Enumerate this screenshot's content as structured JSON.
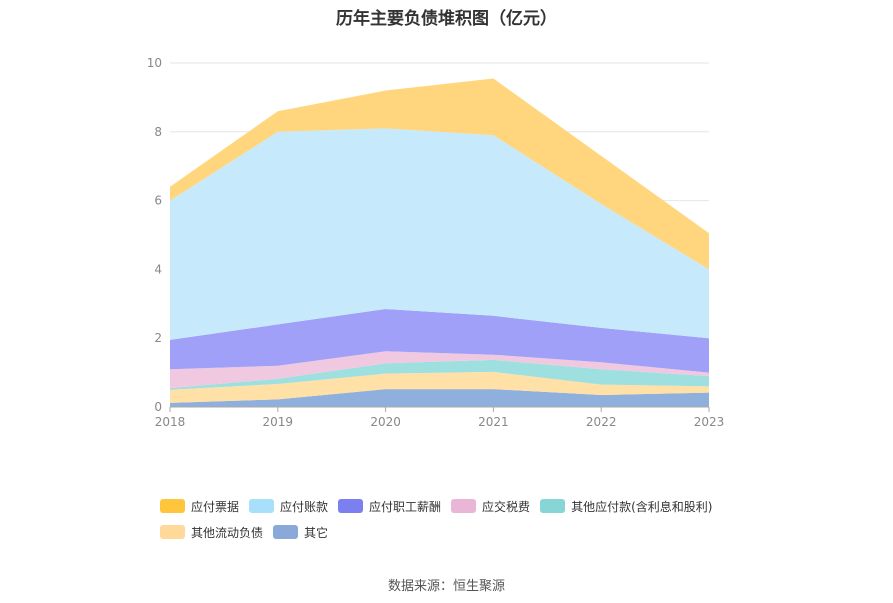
{
  "chart_data": {
    "type": "area",
    "stacked": true,
    "title": "历年主要负债堆积图（亿元）",
    "x": [
      "2018",
      "2019",
      "2020",
      "2021",
      "2022",
      "2023"
    ],
    "ylim": [
      0,
      10
    ],
    "yticks": [
      0,
      2,
      4,
      6,
      8,
      10
    ],
    "grid": true,
    "legend_position": "bottom",
    "series": [
      {
        "name": "其它",
        "color": "#8fb0dc",
        "values": [
          0.12,
          0.22,
          0.52,
          0.52,
          0.35,
          0.42
        ]
      },
      {
        "name": "其他流动负债",
        "color": "#ffe0a6",
        "values": [
          0.38,
          0.45,
          0.45,
          0.5,
          0.3,
          0.18
        ]
      },
      {
        "name": "其他应付款(含利息和股利)",
        "color": "#9ee0e0",
        "values": [
          0.05,
          0.15,
          0.3,
          0.35,
          0.45,
          0.3
        ]
      },
      {
        "name": "应交税费",
        "color": "#f0c8e0",
        "values": [
          0.55,
          0.38,
          0.35,
          0.15,
          0.2,
          0.1
        ]
      },
      {
        "name": "应付职工薪酬",
        "color": "#a0a0f8",
        "values": [
          0.85,
          1.2,
          1.23,
          1.13,
          1.0,
          1.0
        ]
      },
      {
        "name": "应付账款",
        "color": "#c6eafc",
        "values": [
          4.05,
          5.6,
          5.25,
          5.25,
          3.6,
          2.0
        ]
      },
      {
        "name": "应付票据",
        "color": "#ffd67e",
        "values": [
          0.4,
          0.6,
          1.1,
          1.65,
          1.4,
          1.05
        ]
      }
    ],
    "legend": [
      {
        "name": "应付票据",
        "color": "#ffc53d"
      },
      {
        "name": "应付账款",
        "color": "#a8e0fc"
      },
      {
        "name": "应付职工薪酬",
        "color": "#7b7ff0"
      },
      {
        "name": "应交税费",
        "color": "#eab6d8"
      },
      {
        "name": "其他应付款(含利息和股利)",
        "color": "#86d6d6"
      },
      {
        "name": "其他流动负债",
        "color": "#ffd99a"
      },
      {
        "name": "其它",
        "color": "#8aa8d8"
      }
    ]
  },
  "source_note": "数据来源：恒生聚源"
}
